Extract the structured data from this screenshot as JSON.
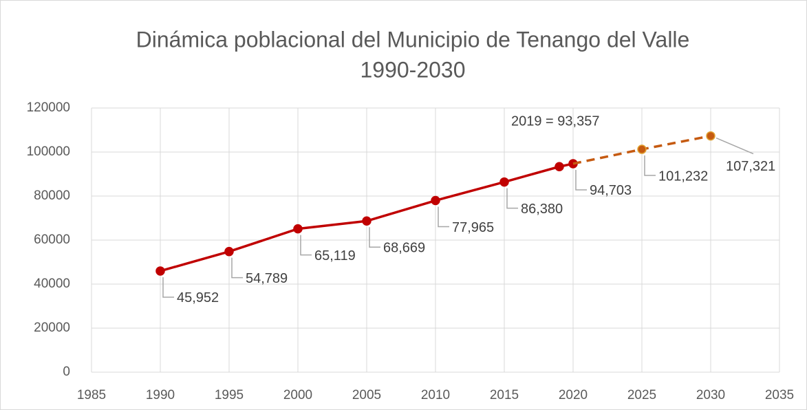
{
  "chart_data": {
    "type": "line",
    "title": [
      "Dinámica poblacional del Municipio de Tenango del Valle",
      "1990-2030"
    ],
    "xlim": [
      1985,
      2035
    ],
    "xticks": [
      1985,
      1990,
      1995,
      2000,
      2005,
      2010,
      2015,
      2020,
      2025,
      2030,
      2035
    ],
    "ylim": [
      0,
      120000
    ],
    "yticks": [
      0,
      20000,
      40000,
      60000,
      80000,
      100000,
      120000
    ],
    "grid": true,
    "series": [
      {
        "color": "#c00000",
        "dash": false,
        "x": [
          1990,
          1995,
          2000,
          2005,
          2010,
          2015,
          2019,
          2020
        ],
        "values": [
          45952,
          54789,
          65119,
          68669,
          77965,
          86380,
          93357,
          94703
        ],
        "value_labels": [
          "45,952",
          "54,789",
          "65,119",
          "68,669",
          "77,965",
          "86,380",
          "2019 = 93,357",
          "94,703"
        ]
      },
      {
        "color": "#c55a11",
        "dash": true,
        "x": [
          2020,
          2025,
          2030
        ],
        "values": [
          94703,
          101232,
          107321
        ],
        "value_labels": [
          null,
          "101,232",
          "107,321"
        ]
      }
    ]
  }
}
